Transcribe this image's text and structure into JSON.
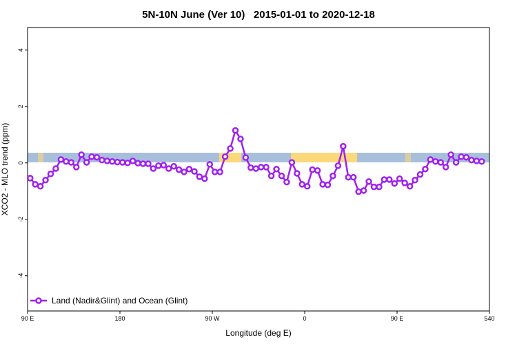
{
  "chart_data": {
    "type": "line",
    "title": "5N-10N June (Ver 10)   2015-01-01 to 2020-12-18",
    "xlabel": "Longitude (deg E)",
    "ylabel": "XCO2 - MLO trend (ppm)",
    "xlim": [
      90,
      540
    ],
    "ylim": [
      -5.25,
      4.8
    ],
    "xticks": [
      {
        "value": 90,
        "label": "90 E"
      },
      180,
      {
        "value": 270,
        "label": "90 W"
      },
      {
        "value": 360,
        "label": "0"
      },
      {
        "value": 450,
        "label": "90 E"
      },
      540
    ],
    "yticks": [
      -4,
      -2,
      0,
      2,
      4
    ],
    "legend": "bottom-left",
    "grid": false,
    "x": [
      92.5,
      97.5,
      102.5,
      107.5,
      112.5,
      117.5,
      122.5,
      127.5,
      132.5,
      137.5,
      142.5,
      147.5,
      152.5,
      157.5,
      162.5,
      167.5,
      172.5,
      177.5,
      182.5,
      187.5,
      192.5,
      197.5,
      202.5,
      207.5,
      212.5,
      217.5,
      222.5,
      227.5,
      232.5,
      237.5,
      242.5,
      247.5,
      252.5,
      257.5,
      262.5,
      267.5,
      272.5,
      277.5,
      282.5,
      287.5,
      292.5,
      297.5,
      302.5,
      307.5,
      312.5,
      317.5,
      322.5,
      327.5,
      332.5,
      337.5,
      342.5,
      347.5,
      352.5,
      357.5,
      362.5,
      367.5,
      372.5,
      377.5,
      382.5,
      387.5,
      392.5,
      397.5,
      402.5,
      407.5,
      412.5,
      417.5,
      422.5,
      427.5,
      432.5,
      437.5,
      442.5,
      447.5,
      452.5,
      457.5,
      462.5,
      467.5,
      472.5,
      477.5,
      482.5,
      487.5,
      492.5,
      497.5,
      502.5,
      507.5,
      512.5,
      517.5,
      522.5,
      527.5,
      532.5
    ],
    "series": [
      {
        "name": "Land (Nadir&Glint) and Ocean (Glint)",
        "color": "#a020f0",
        "values": [
          -0.54,
          -0.76,
          -0.83,
          -0.61,
          -0.39,
          -0.2,
          0.12,
          0.05,
          0.02,
          -0.15,
          0.29,
          0.02,
          0.22,
          0.2,
          0.1,
          0.07,
          0.05,
          0.03,
          0.02,
          0,
          0.07,
          -0.01,
          -0.03,
          -0.03,
          -0.2,
          -0.1,
          -0.08,
          -0.2,
          -0.12,
          -0.24,
          -0.32,
          -0.22,
          -0.3,
          -0.49,
          -0.56,
          -0.05,
          -0.32,
          -0.32,
          0.22,
          0.51,
          1.15,
          0.85,
          0.19,
          -0.17,
          -0.2,
          -0.15,
          -0.15,
          -0.46,
          -0.22,
          -0.46,
          -0.68,
          0.02,
          -0.37,
          -0.76,
          -0.83,
          -0.24,
          -0.27,
          -0.76,
          -0.78,
          -0.46,
          -0.1,
          0.59,
          -0.51,
          -0.51,
          -1.02,
          -0.98,
          -0.66,
          -0.85,
          -0.85,
          -0.59,
          -0.59,
          -0.73,
          -0.56,
          -0.71,
          -0.83,
          -0.61,
          -0.41,
          -0.22,
          0.12,
          0.05,
          0.02,
          -0.15,
          0.29,
          0.02,
          0.22,
          0.2,
          0.1,
          0.07,
          0.05
        ]
      }
    ]
  }
}
